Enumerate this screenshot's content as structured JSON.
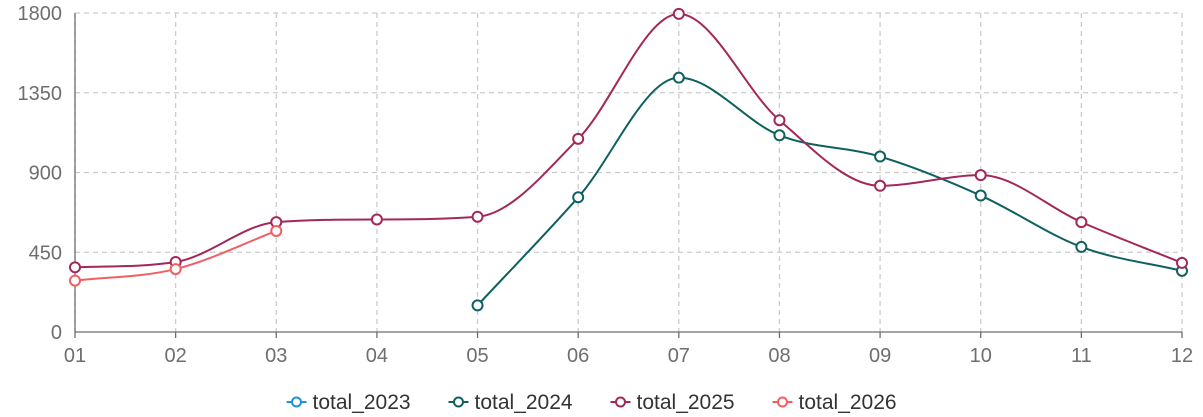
{
  "chart_data": {
    "type": "line",
    "smooth": true,
    "title": "",
    "xlabel": "",
    "ylabel": "",
    "categories": [
      "01",
      "02",
      "03",
      "04",
      "05",
      "06",
      "07",
      "08",
      "09",
      "10",
      "11",
      "12"
    ],
    "ylim": [
      0,
      1800
    ],
    "yticks": [
      0,
      450,
      900,
      1350,
      1800
    ],
    "grid": true,
    "legend_position": "bottom-center",
    "series": [
      {
        "name": "total_2023",
        "color": "#1f93d8",
        "values": [
          null,
          null,
          null,
          null,
          null,
          null,
          null,
          null,
          null,
          null,
          null,
          null
        ]
      },
      {
        "name": "total_2024",
        "color": "#0f6160",
        "values": [
          null,
          null,
          null,
          null,
          150,
          760,
          1435,
          1110,
          990,
          770,
          480,
          345
        ]
      },
      {
        "name": "total_2025",
        "color": "#a3285a",
        "values": [
          365,
          395,
          620,
          635,
          650,
          1090,
          1795,
          1195,
          825,
          885,
          620,
          390
        ]
      },
      {
        "name": "total_2026",
        "color": "#f06063",
        "values": [
          290,
          355,
          570,
          null,
          null,
          null,
          null,
          null,
          null,
          null,
          null,
          null
        ]
      }
    ]
  }
}
